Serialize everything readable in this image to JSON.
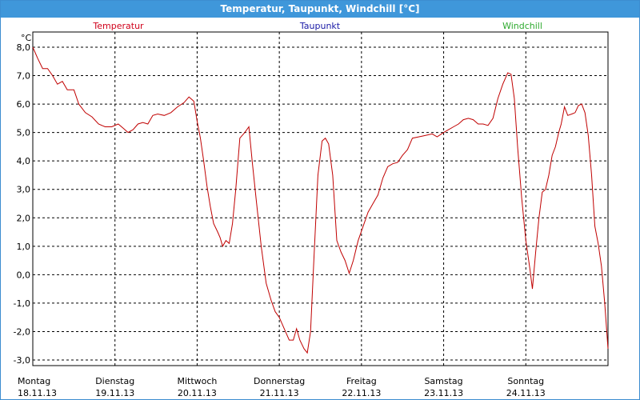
{
  "window": {
    "title": "Temperatur, Taupunkt, Windchill [°C]"
  },
  "chart_data": {
    "type": "line",
    "title": "Temperatur, Taupunkt, Windchill [°C]",
    "ylabel": "°C",
    "ylim": [
      -3.2,
      8.2
    ],
    "xlim": [
      0,
      7
    ],
    "y_ticks": [
      "8,0",
      "7,0",
      "6,0",
      "5,0",
      "4,0",
      "3,0",
      "2,0",
      "1,0",
      "0,0",
      "-1,0",
      "-2,0",
      "-3,0"
    ],
    "x_ticks": [
      {
        "day": "Montag",
        "date": "18.11.13"
      },
      {
        "day": "Dienstag",
        "date": "19.11.13"
      },
      {
        "day": "Mittwoch",
        "date": "20.11.13"
      },
      {
        "day": "Donnerstag",
        "date": "21.11.13"
      },
      {
        "day": "Freitag",
        "date": "22.11.13"
      },
      {
        "day": "Samstag",
        "date": "23.11.13"
      },
      {
        "day": "Sonntag",
        "date": "24.11.13"
      }
    ],
    "grid": true,
    "legend": [
      {
        "name": "Temperatur",
        "color": "#d0021b"
      },
      {
        "name": "Taupunkt",
        "color": "#1a1aa6"
      },
      {
        "name": "Windchill",
        "color": "#2eaa2e"
      }
    ],
    "series": [
      {
        "name": "Temperatur",
        "color": "#c00000",
        "points": [
          [
            0.0,
            8.0
          ],
          [
            0.06,
            7.6
          ],
          [
            0.12,
            7.25
          ],
          [
            0.18,
            7.25
          ],
          [
            0.24,
            7.0
          ],
          [
            0.3,
            6.7
          ],
          [
            0.36,
            6.8
          ],
          [
            0.42,
            6.5
          ],
          [
            0.5,
            6.5
          ],
          [
            0.56,
            6.0
          ],
          [
            0.64,
            5.7
          ],
          [
            0.72,
            5.55
          ],
          [
            0.8,
            5.3
          ],
          [
            0.88,
            5.2
          ],
          [
            0.96,
            5.2
          ],
          [
            1.04,
            5.3
          ],
          [
            1.1,
            5.15
          ],
          [
            1.16,
            5.0
          ],
          [
            1.22,
            5.1
          ],
          [
            1.28,
            5.3
          ],
          [
            1.34,
            5.35
          ],
          [
            1.4,
            5.3
          ],
          [
            1.46,
            5.6
          ],
          [
            1.52,
            5.65
          ],
          [
            1.6,
            5.6
          ],
          [
            1.68,
            5.7
          ],
          [
            1.76,
            5.9
          ],
          [
            1.84,
            6.05
          ],
          [
            1.9,
            6.25
          ],
          [
            1.96,
            6.1
          ],
          [
            2.0,
            5.4
          ],
          [
            2.04,
            4.8
          ],
          [
            2.08,
            4.0
          ],
          [
            2.12,
            3.1
          ],
          [
            2.16,
            2.4
          ],
          [
            2.2,
            1.8
          ],
          [
            2.25,
            1.5
          ],
          [
            2.28,
            1.3
          ],
          [
            2.31,
            1.0
          ],
          [
            2.35,
            1.2
          ],
          [
            2.39,
            1.1
          ],
          [
            2.43,
            1.8
          ],
          [
            2.47,
            3.0
          ],
          [
            2.52,
            4.8
          ],
          [
            2.58,
            5.0
          ],
          [
            2.63,
            5.2
          ],
          [
            2.67,
            4.0
          ],
          [
            2.72,
            2.6
          ],
          [
            2.78,
            1.0
          ],
          [
            2.84,
            -0.3
          ],
          [
            2.9,
            -0.9
          ],
          [
            2.95,
            -1.3
          ],
          [
            3.0,
            -1.5
          ],
          [
            3.06,
            -1.9
          ],
          [
            3.12,
            -2.3
          ],
          [
            3.17,
            -2.3
          ],
          [
            3.21,
            -1.9
          ],
          [
            3.25,
            -2.3
          ],
          [
            3.3,
            -2.6
          ],
          [
            3.34,
            -2.75
          ],
          [
            3.38,
            -2.0
          ],
          [
            3.42,
            0.5
          ],
          [
            3.47,
            3.5
          ],
          [
            3.52,
            4.7
          ],
          [
            3.56,
            4.8
          ],
          [
            3.6,
            4.6
          ],
          [
            3.65,
            3.5
          ],
          [
            3.7,
            1.2
          ],
          [
            3.75,
            0.8
          ],
          [
            3.8,
            0.5
          ],
          [
            3.85,
            0.05
          ],
          [
            3.9,
            0.5
          ],
          [
            3.96,
            1.2
          ],
          [
            4.02,
            1.7
          ],
          [
            4.08,
            2.2
          ],
          [
            4.14,
            2.5
          ],
          [
            4.2,
            2.8
          ],
          [
            4.26,
            3.4
          ],
          [
            4.32,
            3.8
          ],
          [
            4.38,
            3.9
          ],
          [
            4.44,
            3.95
          ],
          [
            4.5,
            4.2
          ],
          [
            4.56,
            4.4
          ],
          [
            4.62,
            4.8
          ],
          [
            4.7,
            4.85
          ],
          [
            4.78,
            4.9
          ],
          [
            4.86,
            4.95
          ],
          [
            4.92,
            4.85
          ],
          [
            5.0,
            5.0
          ],
          [
            5.06,
            5.1
          ],
          [
            5.12,
            5.2
          ],
          [
            5.18,
            5.3
          ],
          [
            5.24,
            5.45
          ],
          [
            5.3,
            5.5
          ],
          [
            5.36,
            5.45
          ],
          [
            5.42,
            5.3
          ],
          [
            5.48,
            5.3
          ],
          [
            5.54,
            5.25
          ],
          [
            5.6,
            5.5
          ],
          [
            5.66,
            6.2
          ],
          [
            5.72,
            6.7
          ],
          [
            5.78,
            7.1
          ],
          [
            5.82,
            7.05
          ],
          [
            5.86,
            6.2
          ],
          [
            5.9,
            4.5
          ],
          [
            5.95,
            2.7
          ],
          [
            6.0,
            1.2
          ],
          [
            6.05,
            0.2
          ],
          [
            6.08,
            -0.5
          ],
          [
            6.12,
            0.8
          ],
          [
            6.16,
            2.0
          ],
          [
            6.2,
            2.9
          ],
          [
            6.24,
            3.0
          ],
          [
            6.28,
            3.5
          ],
          [
            6.32,
            4.2
          ],
          [
            6.36,
            4.5
          ],
          [
            6.4,
            5.0
          ],
          [
            6.43,
            5.3
          ],
          [
            6.47,
            5.9
          ],
          [
            6.51,
            5.6
          ],
          [
            6.56,
            5.65
          ],
          [
            6.6,
            5.7
          ],
          [
            6.64,
            5.95
          ],
          [
            6.68,
            6.0
          ],
          [
            6.72,
            5.7
          ],
          [
            6.76,
            4.9
          ],
          [
            6.8,
            3.5
          ],
          [
            6.84,
            1.7
          ],
          [
            6.88,
            1.1
          ],
          [
            6.92,
            0.3
          ],
          [
            6.96,
            -1.0
          ],
          [
            7.0,
            -2.6
          ]
        ]
      },
      {
        "name": "Taupunkt",
        "color": "#1a1aa6",
        "points": []
      },
      {
        "name": "Windchill",
        "color": "#2eaa2e",
        "points": []
      }
    ]
  }
}
